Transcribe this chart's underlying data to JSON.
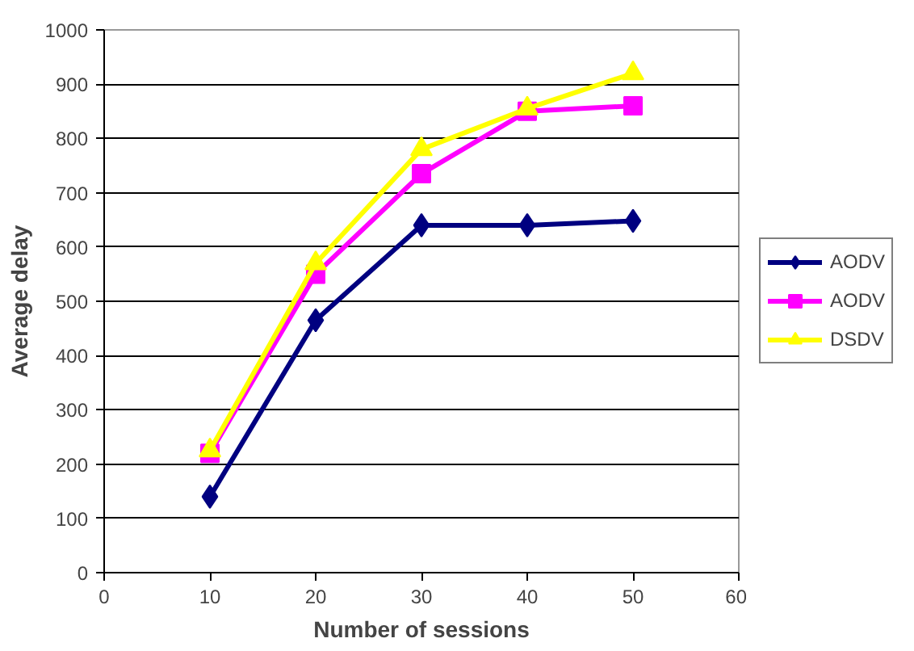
{
  "chart_data": {
    "type": "line",
    "xlabel": "Number of sessions",
    "ylabel": "Average delay",
    "x": [
      10,
      20,
      30,
      40,
      50
    ],
    "series": [
      {
        "name": "AODV",
        "color": "#000080",
        "marker": "diamond",
        "values": [
          140,
          465,
          640,
          640,
          648
        ]
      },
      {
        "name": "AODV",
        "color": "#ff00ff",
        "marker": "square",
        "values": [
          220,
          550,
          735,
          850,
          860
        ]
      },
      {
        "name": "DSDV",
        "color": "#ffff00",
        "marker": "triangle",
        "values": [
          225,
          570,
          780,
          855,
          920
        ]
      }
    ],
    "xlim": [
      0,
      60
    ],
    "xticks": [
      0,
      10,
      20,
      30,
      40,
      50,
      60
    ],
    "ylim": [
      0,
      1000
    ],
    "yticks": [
      0,
      100,
      200,
      300,
      400,
      500,
      600,
      700,
      800,
      900,
      1000
    ],
    "grid": "y",
    "legend": "right"
  }
}
